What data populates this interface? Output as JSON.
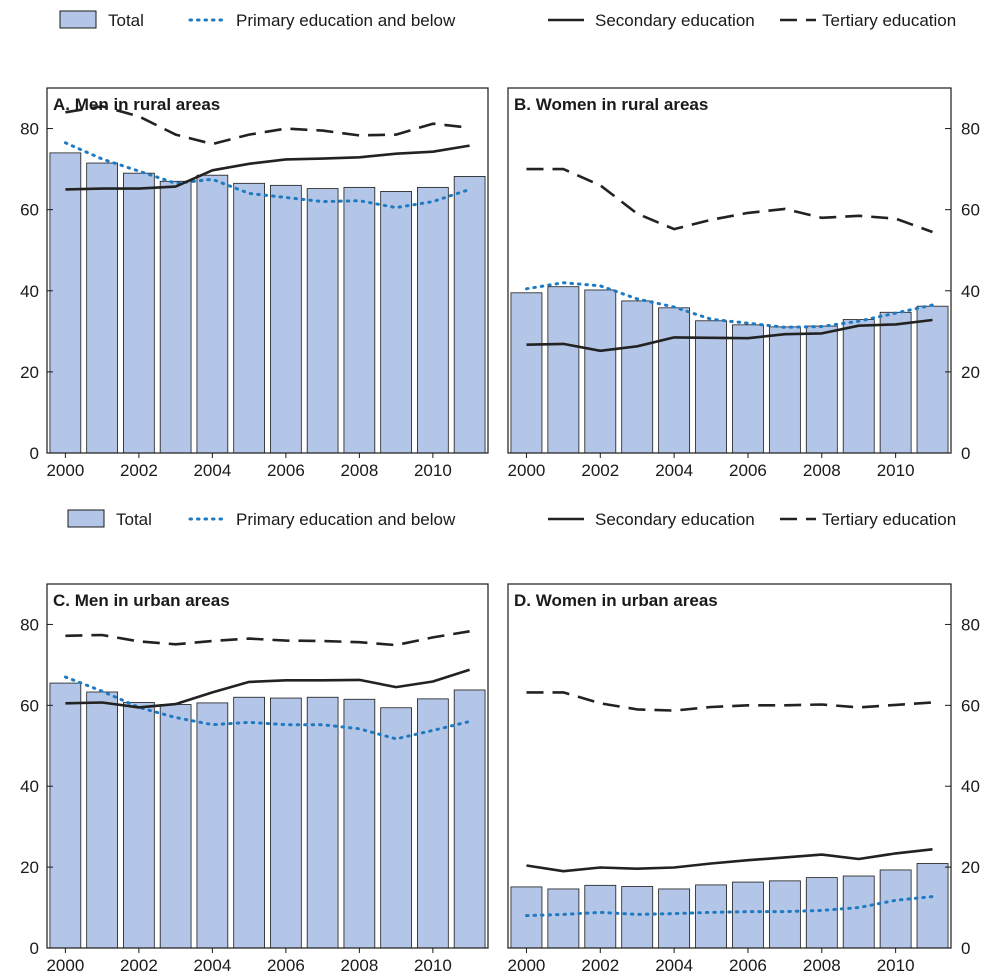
{
  "legend": {
    "items": [
      {
        "label": "Total",
        "kind": "bar"
      },
      {
        "label": "Primary education and below",
        "kind": "dotted"
      },
      {
        "label": "Secondary education",
        "kind": "solid"
      },
      {
        "label": "Tertiary education",
        "kind": "dashed"
      }
    ]
  },
  "colors": {
    "bar_fill": "#b4c6e7",
    "bar_stroke": "#1a1a1a",
    "primary_line": "#1f7ac1",
    "secondary_line": "#222222",
    "tertiary_line": "#222222"
  },
  "chart_data": [
    {
      "type": "bar",
      "title": "A. Men in rural areas",
      "x": [
        2000,
        2001,
        2002,
        2003,
        2004,
        2005,
        2006,
        2007,
        2008,
        2009,
        2010,
        2011
      ],
      "x_tick_labels": [
        "2000",
        "2002",
        "2004",
        "2006",
        "2008",
        "2010"
      ],
      "y_ticks": [
        0,
        20,
        40,
        60,
        80
      ],
      "ylim": [
        0,
        90
      ],
      "y_axis_side": "left",
      "series": [
        {
          "name": "Total",
          "type": "bar",
          "values": [
            74,
            71.5,
            69,
            67,
            68.5,
            66.5,
            66,
            65.2,
            65.5,
            64.5,
            65.5,
            68.2
          ]
        },
        {
          "name": "Primary education and below",
          "type": "line",
          "style": "dotted",
          "values": [
            76.5,
            72.5,
            69.5,
            66.5,
            67.5,
            64,
            63,
            62,
            62.2,
            60.5,
            62,
            65
          ]
        },
        {
          "name": "Secondary education",
          "type": "line",
          "style": "solid",
          "values": [
            65,
            65.2,
            65.2,
            65.7,
            69.7,
            71.3,
            72.4,
            72.6,
            72.9,
            73.8,
            74.3,
            75.8
          ]
        },
        {
          "name": "Tertiary education",
          "type": "line",
          "style": "dashed",
          "values": [
            84,
            85.5,
            83,
            78.5,
            76.2,
            78.5,
            80,
            79.5,
            78.3,
            78.5,
            81.2,
            80.2
          ]
        }
      ]
    },
    {
      "type": "bar",
      "title": "B. Women in rural areas",
      "x": [
        2000,
        2001,
        2002,
        2003,
        2004,
        2005,
        2006,
        2007,
        2008,
        2009,
        2010,
        2011
      ],
      "x_tick_labels": [
        "2000",
        "2002",
        "2004",
        "2006",
        "2008",
        "2010"
      ],
      "y_ticks": [
        0,
        20,
        40,
        60,
        80
      ],
      "ylim": [
        0,
        90
      ],
      "y_axis_side": "right",
      "series": [
        {
          "name": "Total",
          "type": "bar",
          "values": [
            39.5,
            41,
            40.2,
            37.5,
            35.8,
            32.6,
            31.6,
            31.1,
            31.3,
            32.9,
            34.7,
            36.2
          ]
        },
        {
          "name": "Primary education and below",
          "type": "line",
          "style": "dotted",
          "values": [
            40.5,
            42,
            41.2,
            38,
            36,
            33,
            32,
            31,
            31.2,
            32.5,
            34.5,
            36.5
          ]
        },
        {
          "name": "Secondary education",
          "type": "line",
          "style": "solid",
          "values": [
            26.7,
            26.9,
            25.2,
            26.3,
            28.5,
            28.4,
            28.3,
            29.3,
            29.5,
            31.4,
            31.7,
            32.8
          ]
        },
        {
          "name": "Tertiary education",
          "type": "line",
          "style": "dashed",
          "values": [
            70,
            70,
            66,
            59,
            55.2,
            57.5,
            59.2,
            60.2,
            58,
            58.5,
            57.8,
            54.5
          ]
        }
      ]
    },
    {
      "type": "bar",
      "title": "C. Men in urban areas",
      "x": [
        2000,
        2001,
        2002,
        2003,
        2004,
        2005,
        2006,
        2007,
        2008,
        2009,
        2010,
        2011
      ],
      "x_tick_labels": [
        "2000",
        "2002",
        "2004",
        "2006",
        "2008",
        "2010"
      ],
      "y_ticks": [
        0,
        20,
        40,
        60,
        80
      ],
      "ylim": [
        0,
        90
      ],
      "y_axis_side": "left",
      "series": [
        {
          "name": "Total",
          "type": "bar",
          "values": [
            65.5,
            63.3,
            60.7,
            60.2,
            60.6,
            62,
            61.8,
            62,
            61.5,
            59.4,
            61.6,
            63.8
          ]
        },
        {
          "name": "Primary education and below",
          "type": "line",
          "style": "dotted",
          "values": [
            67,
            63.5,
            59.5,
            57,
            55.2,
            55.8,
            55.2,
            55.2,
            54.2,
            51.7,
            53.8,
            56
          ]
        },
        {
          "name": "Secondary education",
          "type": "line",
          "style": "solid",
          "values": [
            60.5,
            60.7,
            59.5,
            60.3,
            63.2,
            65.8,
            66.2,
            66.2,
            66.3,
            64.5,
            65.9,
            68.8
          ]
        },
        {
          "name": "Tertiary education",
          "type": "line",
          "style": "dashed",
          "values": [
            77.2,
            77.4,
            75.8,
            75.1,
            75.9,
            76.5,
            76,
            75.9,
            75.6,
            74.9,
            76.8,
            78.3
          ]
        }
      ]
    },
    {
      "type": "bar",
      "title": "D. Women in urban areas",
      "x": [
        2000,
        2001,
        2002,
        2003,
        2004,
        2005,
        2006,
        2007,
        2008,
        2009,
        2010,
        2011
      ],
      "x_tick_labels": [
        "2000",
        "2002",
        "2004",
        "2006",
        "2008",
        "2010"
      ],
      "y_ticks": [
        0,
        20,
        40,
        60,
        80
      ],
      "ylim": [
        0,
        90
      ],
      "y_axis_side": "right",
      "series": [
        {
          "name": "Total",
          "type": "bar",
          "values": [
            15.1,
            14.6,
            15.5,
            15.2,
            14.6,
            15.6,
            16.3,
            16.6,
            17.4,
            17.8,
            19.3,
            20.9
          ]
        },
        {
          "name": "Primary education and below",
          "type": "line",
          "style": "dotted",
          "values": [
            8,
            8.3,
            8.8,
            8.3,
            8.5,
            8.8,
            9,
            9,
            9.3,
            10,
            11.8,
            12.7
          ]
        },
        {
          "name": "Secondary education",
          "type": "line",
          "style": "solid",
          "values": [
            20.4,
            19,
            19.9,
            19.6,
            19.9,
            20.9,
            21.7,
            22.4,
            23.1,
            22,
            23.4,
            24.4
          ]
        },
        {
          "name": "Tertiary education",
          "type": "line",
          "style": "dashed",
          "values": [
            63.2,
            63.2,
            60.5,
            59,
            58.7,
            59.6,
            60,
            60,
            60.2,
            59.5,
            60.1,
            60.7
          ]
        }
      ]
    }
  ]
}
